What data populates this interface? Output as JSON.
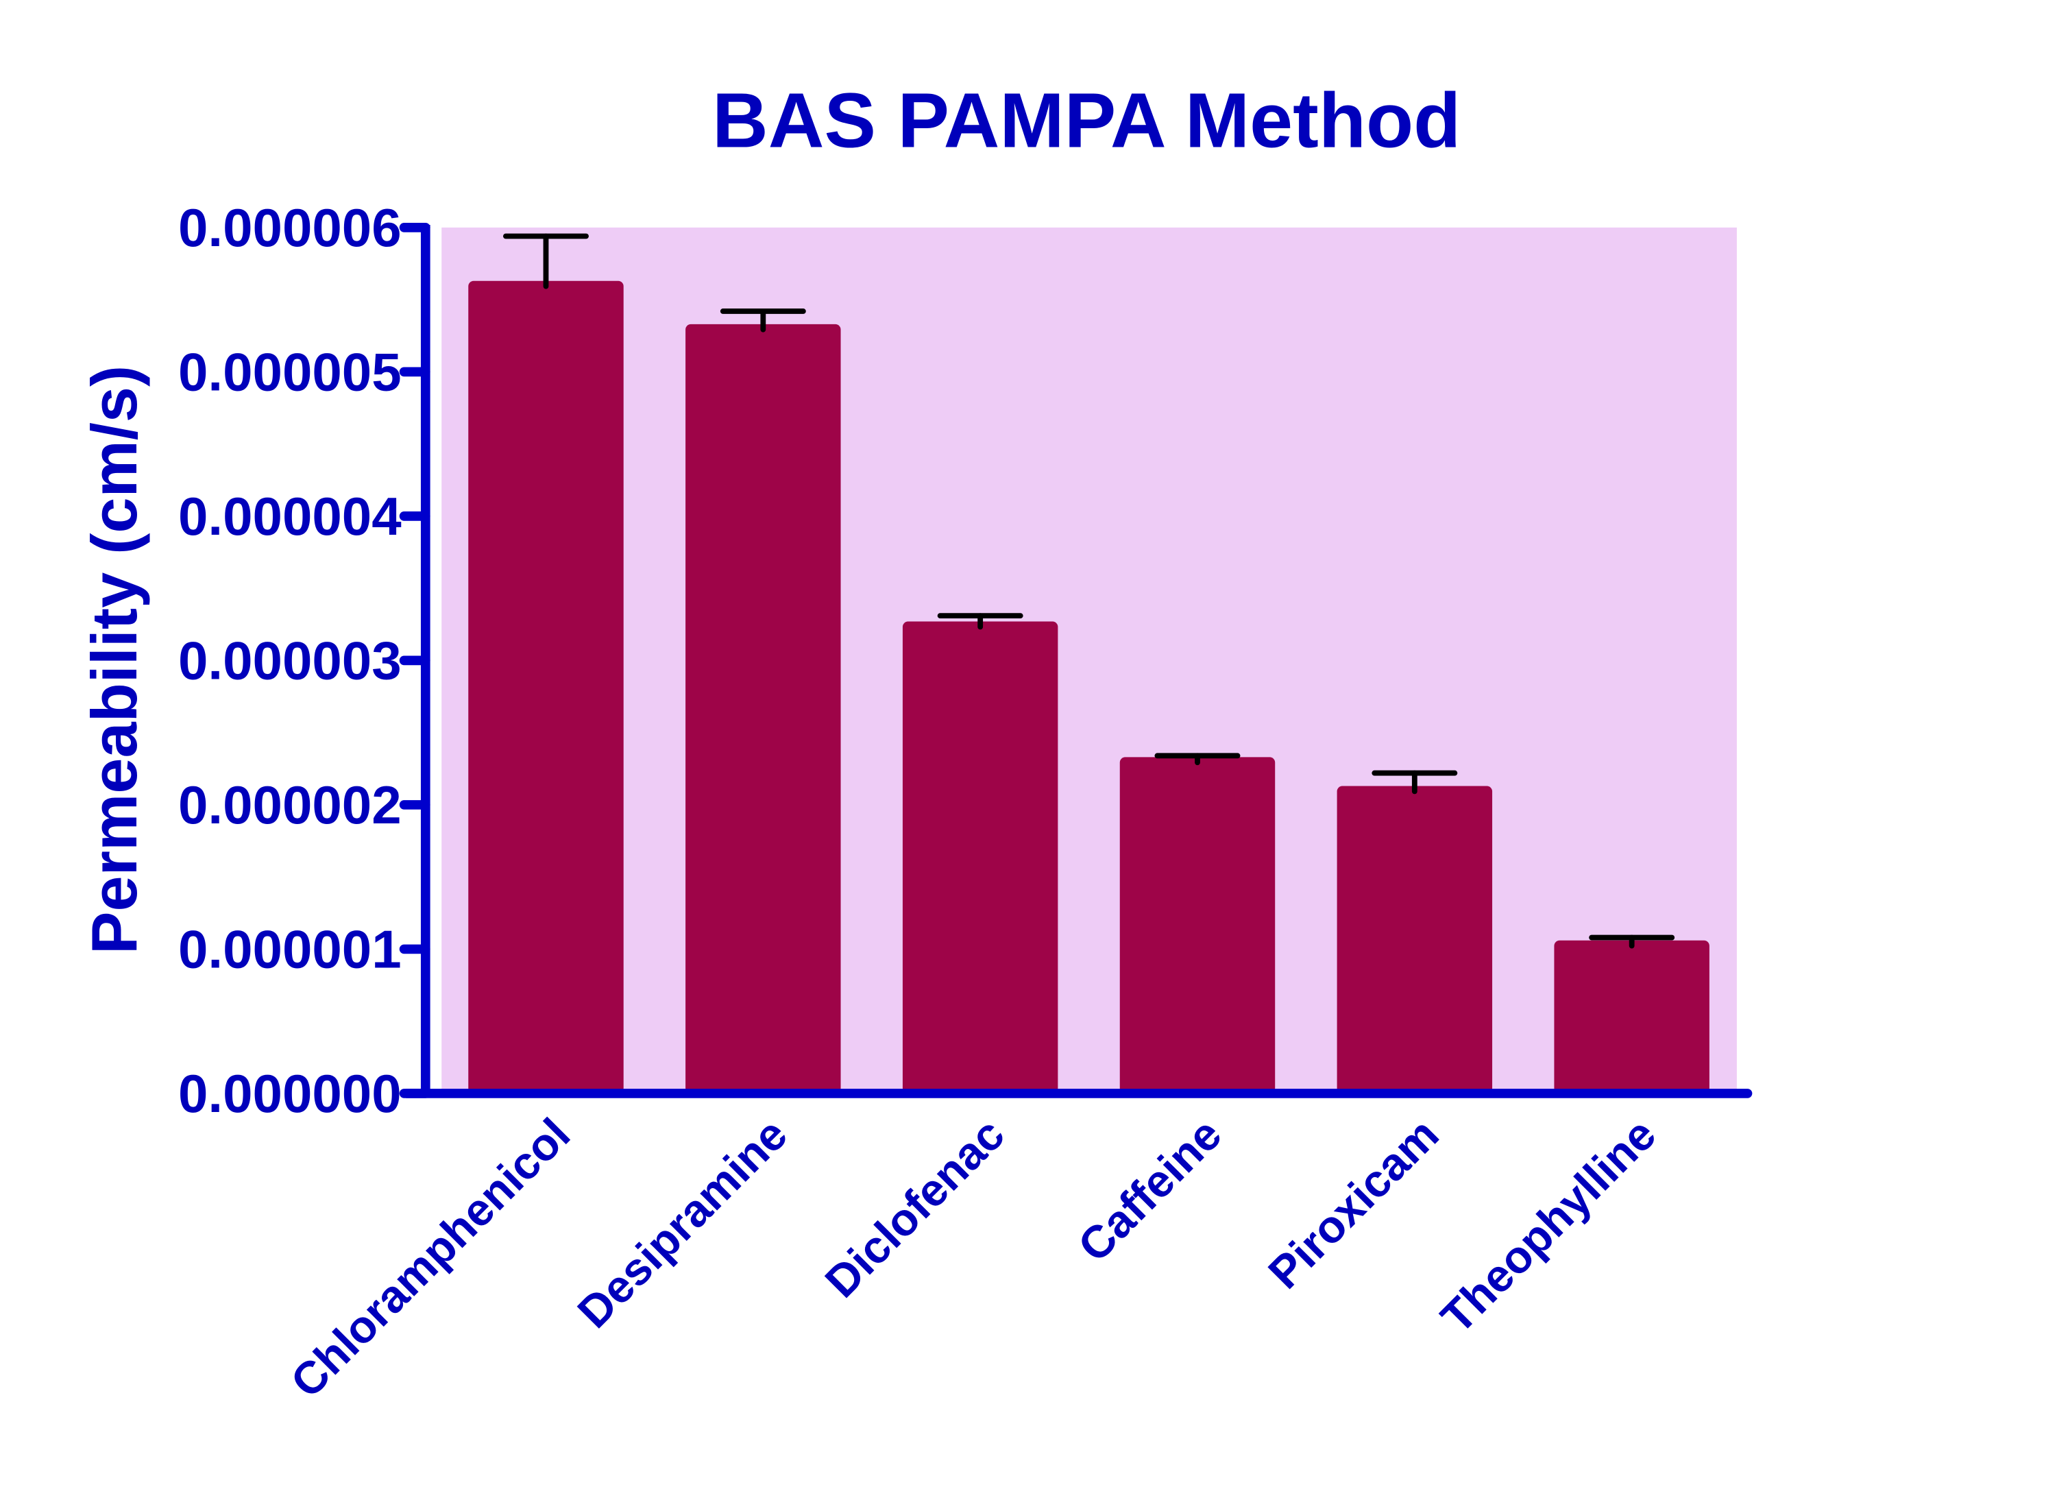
{
  "chart_data": {
    "type": "bar",
    "title": "BAS PAMPA Method",
    "xlabel": "",
    "ylabel": "Permeability (cm/s)",
    "categories": [
      "Chloramphenicol",
      "Desipramine",
      "Diclofenac",
      "Caffeine",
      "Piroxicam",
      "Theophylline"
    ],
    "values": [
      5.63e-06,
      5.33e-06,
      3.27e-06,
      2.33e-06,
      2.13e-06,
      1.06e-06
    ],
    "error_upper": [
      3.1e-07,
      9e-08,
      4e-08,
      1e-08,
      9e-08,
      2e-08
    ],
    "ylim": [
      0,
      6e-06
    ],
    "yticks": [
      0,
      1e-06,
      2e-06,
      3e-06,
      4e-06,
      5e-06,
      6e-06
    ],
    "ytick_labels": [
      "0.000000",
      "0.000001",
      "0.000002",
      "0.000003",
      "0.000004",
      "0.000005",
      "0.000006"
    ],
    "grid": false,
    "legend": "none",
    "colors": {
      "bar": "#9e0448",
      "plot_background": "#eeccf6",
      "axis": "#0000cc",
      "text": "#0000bb",
      "error_bar": "#000000"
    }
  }
}
